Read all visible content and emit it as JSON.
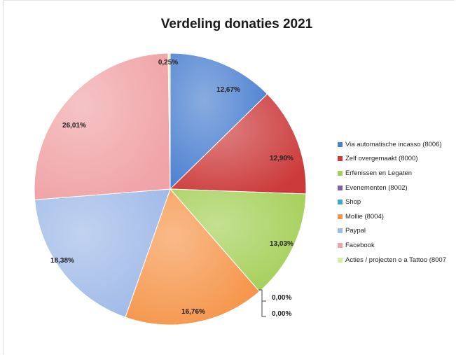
{
  "chart_data": {
    "type": "pie",
    "title": "Verdeling donaties 2021",
    "slices": [
      {
        "label": "Via automatische incasso (8006)",
        "value": 12.67,
        "value_label": "12,67%",
        "color": "#4a7fd0"
      },
      {
        "label": "Zelf overgemaakt (8000)",
        "value": 12.9,
        "value_label": "12,90%",
        "color": "#cc3b3b"
      },
      {
        "label": "Erfenissen en Legaten",
        "value": 13.03,
        "value_label": "13,03%",
        "color": "#a4cf58"
      },
      {
        "label": "Evenementen (8002)",
        "value": 0.0,
        "value_label": "0,00%",
        "color": "#7b62a8"
      },
      {
        "label": "Shop",
        "value": 0.0,
        "value_label": "0,00%",
        "color": "#3fa9cc"
      },
      {
        "label": "Mollie (8004)",
        "value": 16.76,
        "value_label": "16,76%",
        "color": "#f5954a"
      },
      {
        "label": "Paypal",
        "value": 18.38,
        "value_label": "18,38%",
        "color": "#9fb9e8"
      },
      {
        "label": "Facebook",
        "value": 26.01,
        "value_label": "26,01%",
        "color": "#f0a3a6"
      },
      {
        "label": "Acties / projecten o a Tattoo (8007",
        "value": 0.25,
        "value_label": "0,25%",
        "color": "#d9eaa3"
      }
    ],
    "legend_position": "right"
  }
}
